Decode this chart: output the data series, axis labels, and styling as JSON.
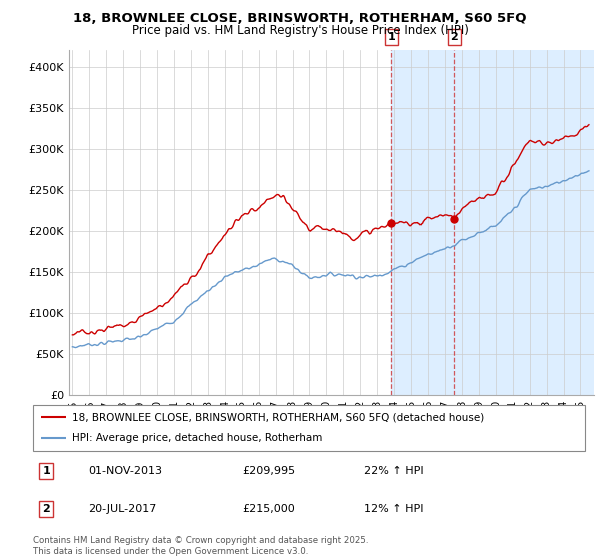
{
  "title_line1": "18, BROWNLEE CLOSE, BRINSWORTH, ROTHERHAM, S60 5FQ",
  "title_line2": "Price paid vs. HM Land Registry's House Price Index (HPI)",
  "ylim": [
    0,
    420000
  ],
  "yticks": [
    0,
    50000,
    100000,
    150000,
    200000,
    250000,
    300000,
    350000,
    400000
  ],
  "ytick_labels": [
    "£0",
    "£50K",
    "£100K",
    "£150K",
    "£200K",
    "£250K",
    "£300K",
    "£350K",
    "£400K"
  ],
  "legend_entry1": "18, BROWNLEE CLOSE, BRINSWORTH, ROTHERHAM, S60 5FQ (detached house)",
  "legend_entry2": "HPI: Average price, detached house, Rotherham",
  "transaction1_date": "01-NOV-2013",
  "transaction1_price": "£209,995",
  "transaction1_hpi": "22% ↑ HPI",
  "transaction2_date": "20-JUL-2017",
  "transaction2_price": "£215,000",
  "transaction2_hpi": "12% ↑ HPI",
  "footer": "Contains HM Land Registry data © Crown copyright and database right 2025.\nThis data is licensed under the Open Government Licence v3.0.",
  "red_color": "#cc0000",
  "blue_color": "#6699cc",
  "highlight_color": "#ddeeff",
  "marker1_x": 2013.833,
  "marker2_x": 2017.55,
  "xmin": 1994.8,
  "xmax": 2025.8
}
